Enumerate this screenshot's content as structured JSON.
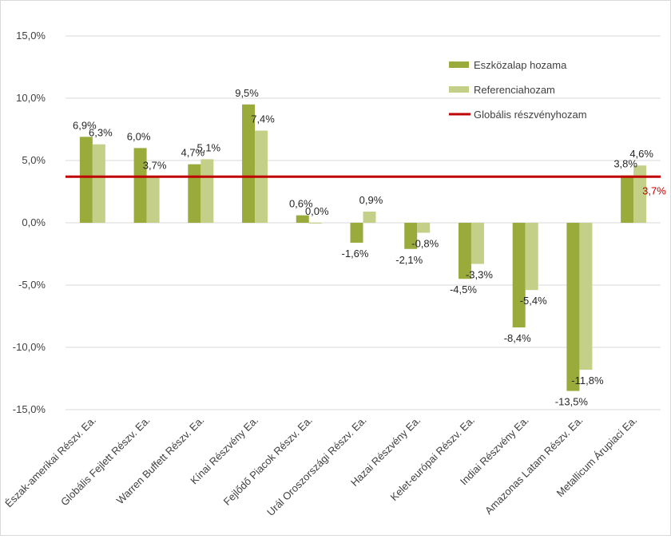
{
  "chart_data": {
    "type": "bar",
    "title": "",
    "xlabel": "",
    "ylabel": "",
    "ylim": [
      -15,
      15
    ],
    "yticks": [
      15,
      10,
      5,
      0,
      -5,
      -10,
      -15
    ],
    "ytick_labels": [
      "15,0%",
      "10,0%",
      "5,0%",
      "0,0%",
      "-5,0%",
      "-10,0%",
      "-15,0%"
    ],
    "categories": [
      "Észak-amerikai Részv. Ea.",
      "Globális Fejlett Részv. Ea.",
      "Warren Buffett Részv. Ea.",
      "Kínai Részvény Ea.",
      "Fejlődő Piacok Részv. Ea.",
      "Urál Oroszországi Részv. Ea.",
      "Hazai Részvény Ea.",
      "Kelet-európai Részv. Ea.",
      "Indiai Részvény Ea.",
      "Amazonas Latam Részv. Ea.",
      "Metallicum Árupiaci Ea."
    ],
    "series": [
      {
        "name": "Eszközalap hozama",
        "color": "#9aab3b",
        "values": [
          6.9,
          6.0,
          4.7,
          9.5,
          0.6,
          -1.6,
          -2.1,
          -4.5,
          -8.4,
          -13.5,
          3.8
        ],
        "labels": [
          "6,9%",
          "6,0%",
          "4,7%",
          "9,5%",
          "0,6%",
          "-1,6%",
          "-2,1%",
          "-4,5%",
          "-8,4%",
          "-13,5%",
          "3,8%"
        ]
      },
      {
        "name": "Referenciahozam",
        "color": "#c4cf88",
        "values": [
          6.3,
          3.7,
          5.1,
          7.4,
          0.0,
          0.9,
          -0.8,
          -3.3,
          -5.4,
          -11.8,
          4.6
        ],
        "labels": [
          "6,3%",
          "3,7%",
          "5,1%",
          "7,4%",
          "0,0%",
          "0,9%",
          "-0,8%",
          "-3,3%",
          "-5,4%",
          "-11,8%",
          "4,6%"
        ]
      }
    ],
    "reference_line": {
      "name": "Globális részvényhozam",
      "value": 3.7,
      "label": "3,7%",
      "color": "#c00000"
    },
    "legend_position": "top-right",
    "grid": true
  }
}
